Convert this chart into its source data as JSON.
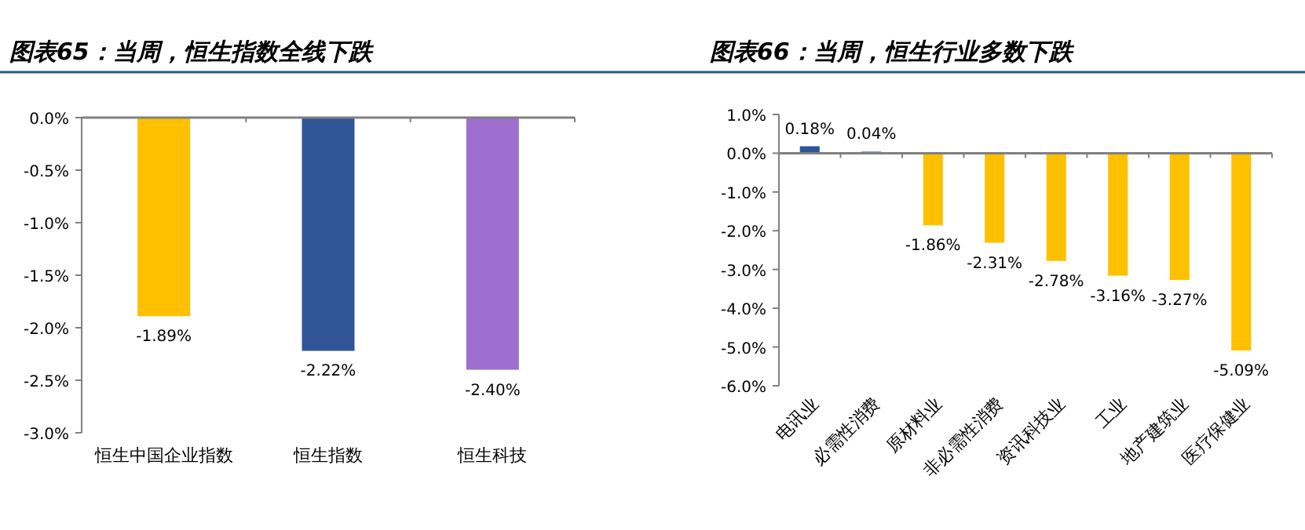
{
  "chart_data": [
    {
      "type": "bar",
      "title": "图表65：当周，恒生指数全线下跌",
      "categories": [
        "恒生中国企业指数",
        "恒生指数",
        "恒生科技"
      ],
      "values": [
        -1.89,
        -2.22,
        -2.4
      ],
      "colors": [
        "#ffc000",
        "#2f5597",
        "#9e6fce"
      ],
      "value_labels": [
        "-1.89%",
        "-2.22%",
        "-2.40%"
      ],
      "ylim": [
        -3,
        0
      ],
      "yticks": [
        {
          "value": 0,
          "label": "0.0%"
        },
        {
          "value": -0.5,
          "label": "-0.5%"
        },
        {
          "value": -1,
          "label": "-1.0%"
        },
        {
          "value": -1.5,
          "label": "-1.5%"
        },
        {
          "value": -2,
          "label": "-2.0%"
        },
        {
          "value": -2.5,
          "label": "-2.5%"
        },
        {
          "value": -3,
          "label": "-3.0%"
        }
      ]
    },
    {
      "type": "bar",
      "title": "图表66：当周，恒生行业多数下跌",
      "categories": [
        "电讯业",
        "必需性消费",
        "原材料业",
        "非必需性消费",
        "资讯科技业",
        "工业",
        "地产建筑业",
        "医疗保健业"
      ],
      "values": [
        0.18,
        0.04,
        -1.86,
        -2.31,
        -2.78,
        -3.16,
        -3.27,
        -5.09
      ],
      "colors": [
        "#2f5597",
        "#2f5597",
        "#ffc000",
        "#ffc000",
        "#ffc000",
        "#ffc000",
        "#ffc000",
        "#ffc000"
      ],
      "value_labels": [
        "0.18%",
        "0.04%",
        "-1.86%",
        "-2.31%",
        "-2.78%",
        "-3.16%",
        "-3.27%",
        "-5.09%"
      ],
      "ylim": [
        -6,
        1
      ],
      "yticks": [
        {
          "value": 1,
          "label": "1.0%"
        },
        {
          "value": 0,
          "label": "0.0%"
        },
        {
          "value": -1,
          "label": "-1.0%"
        },
        {
          "value": -2,
          "label": "-2.0%"
        },
        {
          "value": -3,
          "label": "-3.0%"
        },
        {
          "value": -4,
          "label": "-4.0%"
        },
        {
          "value": -5,
          "label": "-5.0%"
        },
        {
          "value": -6,
          "label": "-6.0%"
        }
      ]
    }
  ]
}
